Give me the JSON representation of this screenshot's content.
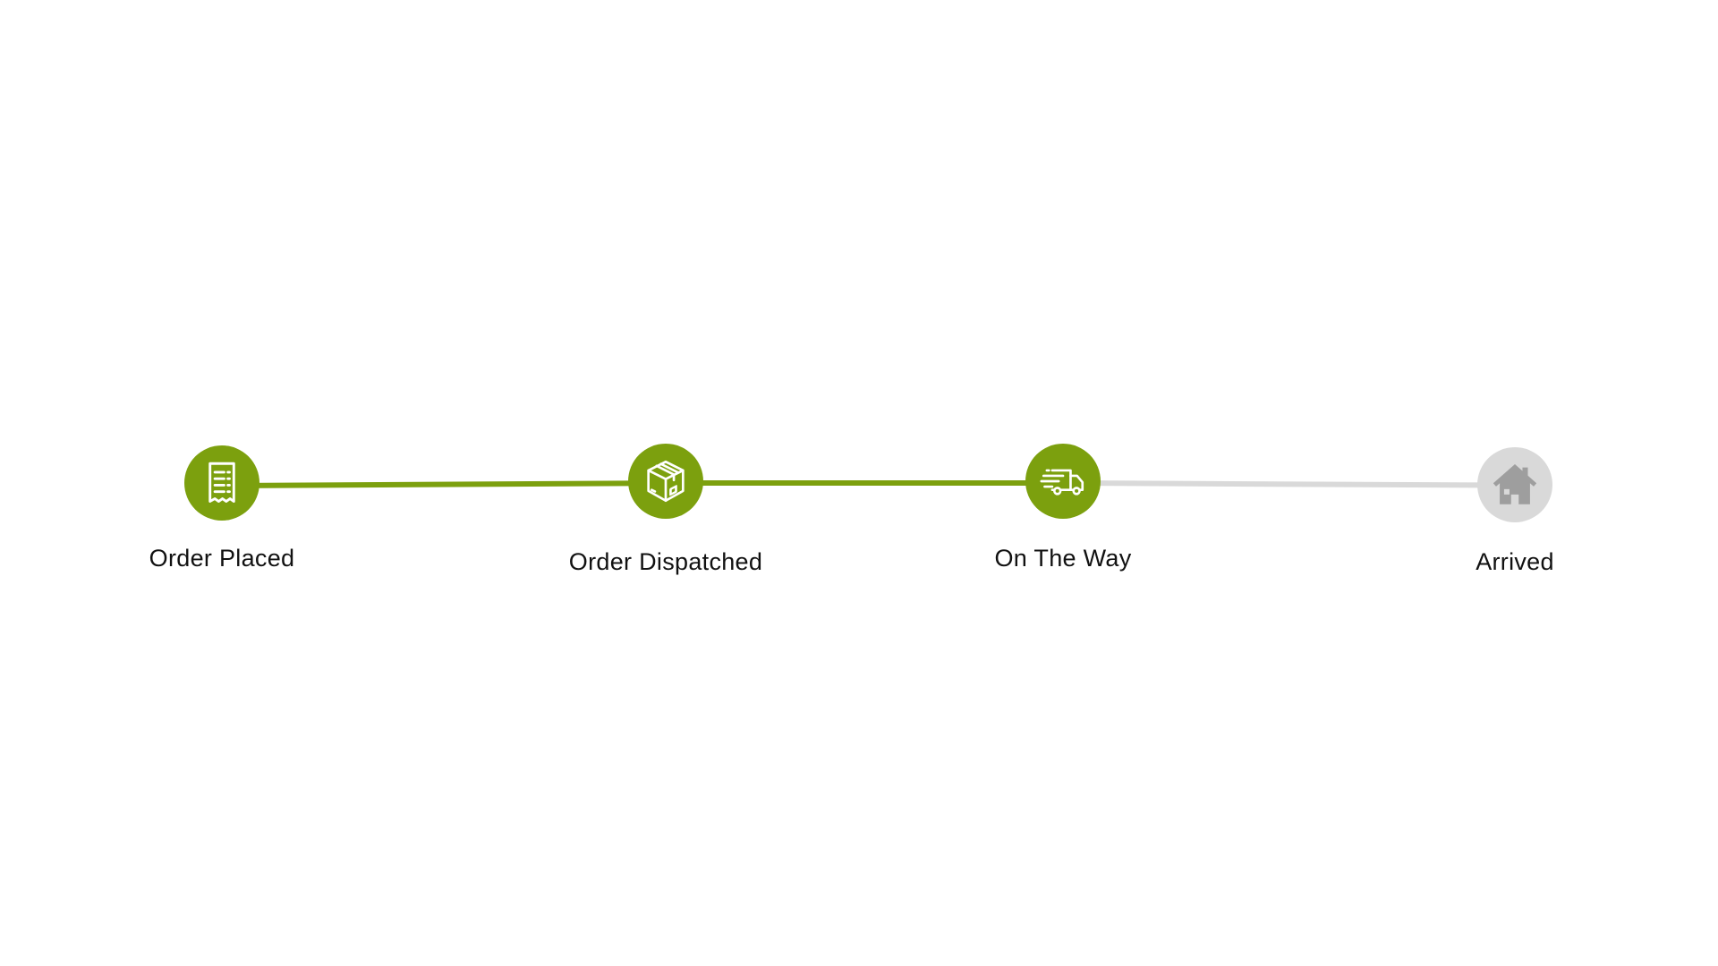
{
  "colors": {
    "complete": "#7ca00e",
    "pending": "#d9d9d9",
    "icon_complete": "#ffffff",
    "icon_pending": "#9e9e9e",
    "label": "#111111"
  },
  "steps": [
    {
      "label": "Order Placed",
      "icon": "receipt-icon",
      "status": "complete"
    },
    {
      "label": "Order Dispatched",
      "icon": "package-box-icon",
      "status": "complete"
    },
    {
      "label": "On The Way",
      "icon": "delivery-truck-icon",
      "status": "complete"
    },
    {
      "label": "Arrived",
      "icon": "house-icon",
      "status": "pending"
    }
  ],
  "connectors": [
    {
      "status": "complete"
    },
    {
      "status": "complete"
    },
    {
      "status": "pending"
    }
  ]
}
